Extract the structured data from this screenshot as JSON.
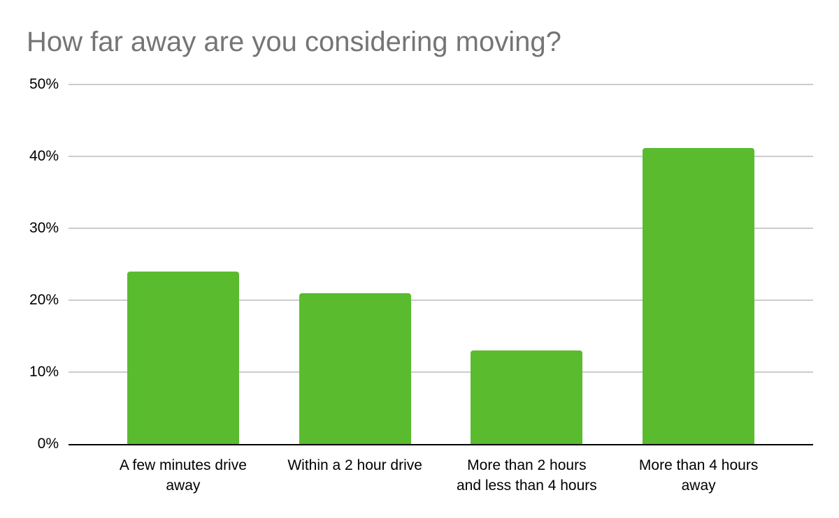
{
  "colors": {
    "background": "#ffffff",
    "bar": "#5abb2f",
    "gridline": "#cccccc",
    "axis_line": "#000000",
    "title_text": "#757575",
    "tick_text": "#000000"
  },
  "chart_data": {
    "type": "bar",
    "title": "How far away are you considering moving?",
    "categories": [
      "A few minutes drive away",
      "Within a 2 hour drive",
      "More than 2 hours and less than 4 hours",
      "More than 4 hours away"
    ],
    "category_lines": [
      [
        "A few minutes drive",
        "away"
      ],
      [
        "Within a 2 hour drive"
      ],
      [
        "More than 2 hours",
        "and less than 4 hours"
      ],
      [
        "More than 4 hours",
        "away"
      ]
    ],
    "values": [
      24,
      21,
      13,
      41.2
    ],
    "unit": "%",
    "xlabel": "",
    "ylabel": "",
    "ylim": [
      0,
      50
    ],
    "ytick_values": [
      0,
      10,
      20,
      30,
      40,
      50
    ],
    "ytick_labels": [
      "0%",
      "10%",
      "20%",
      "30%",
      "40%",
      "50%"
    ],
    "grid": true,
    "legend": "none",
    "bar_color": "#5abb2f"
  }
}
